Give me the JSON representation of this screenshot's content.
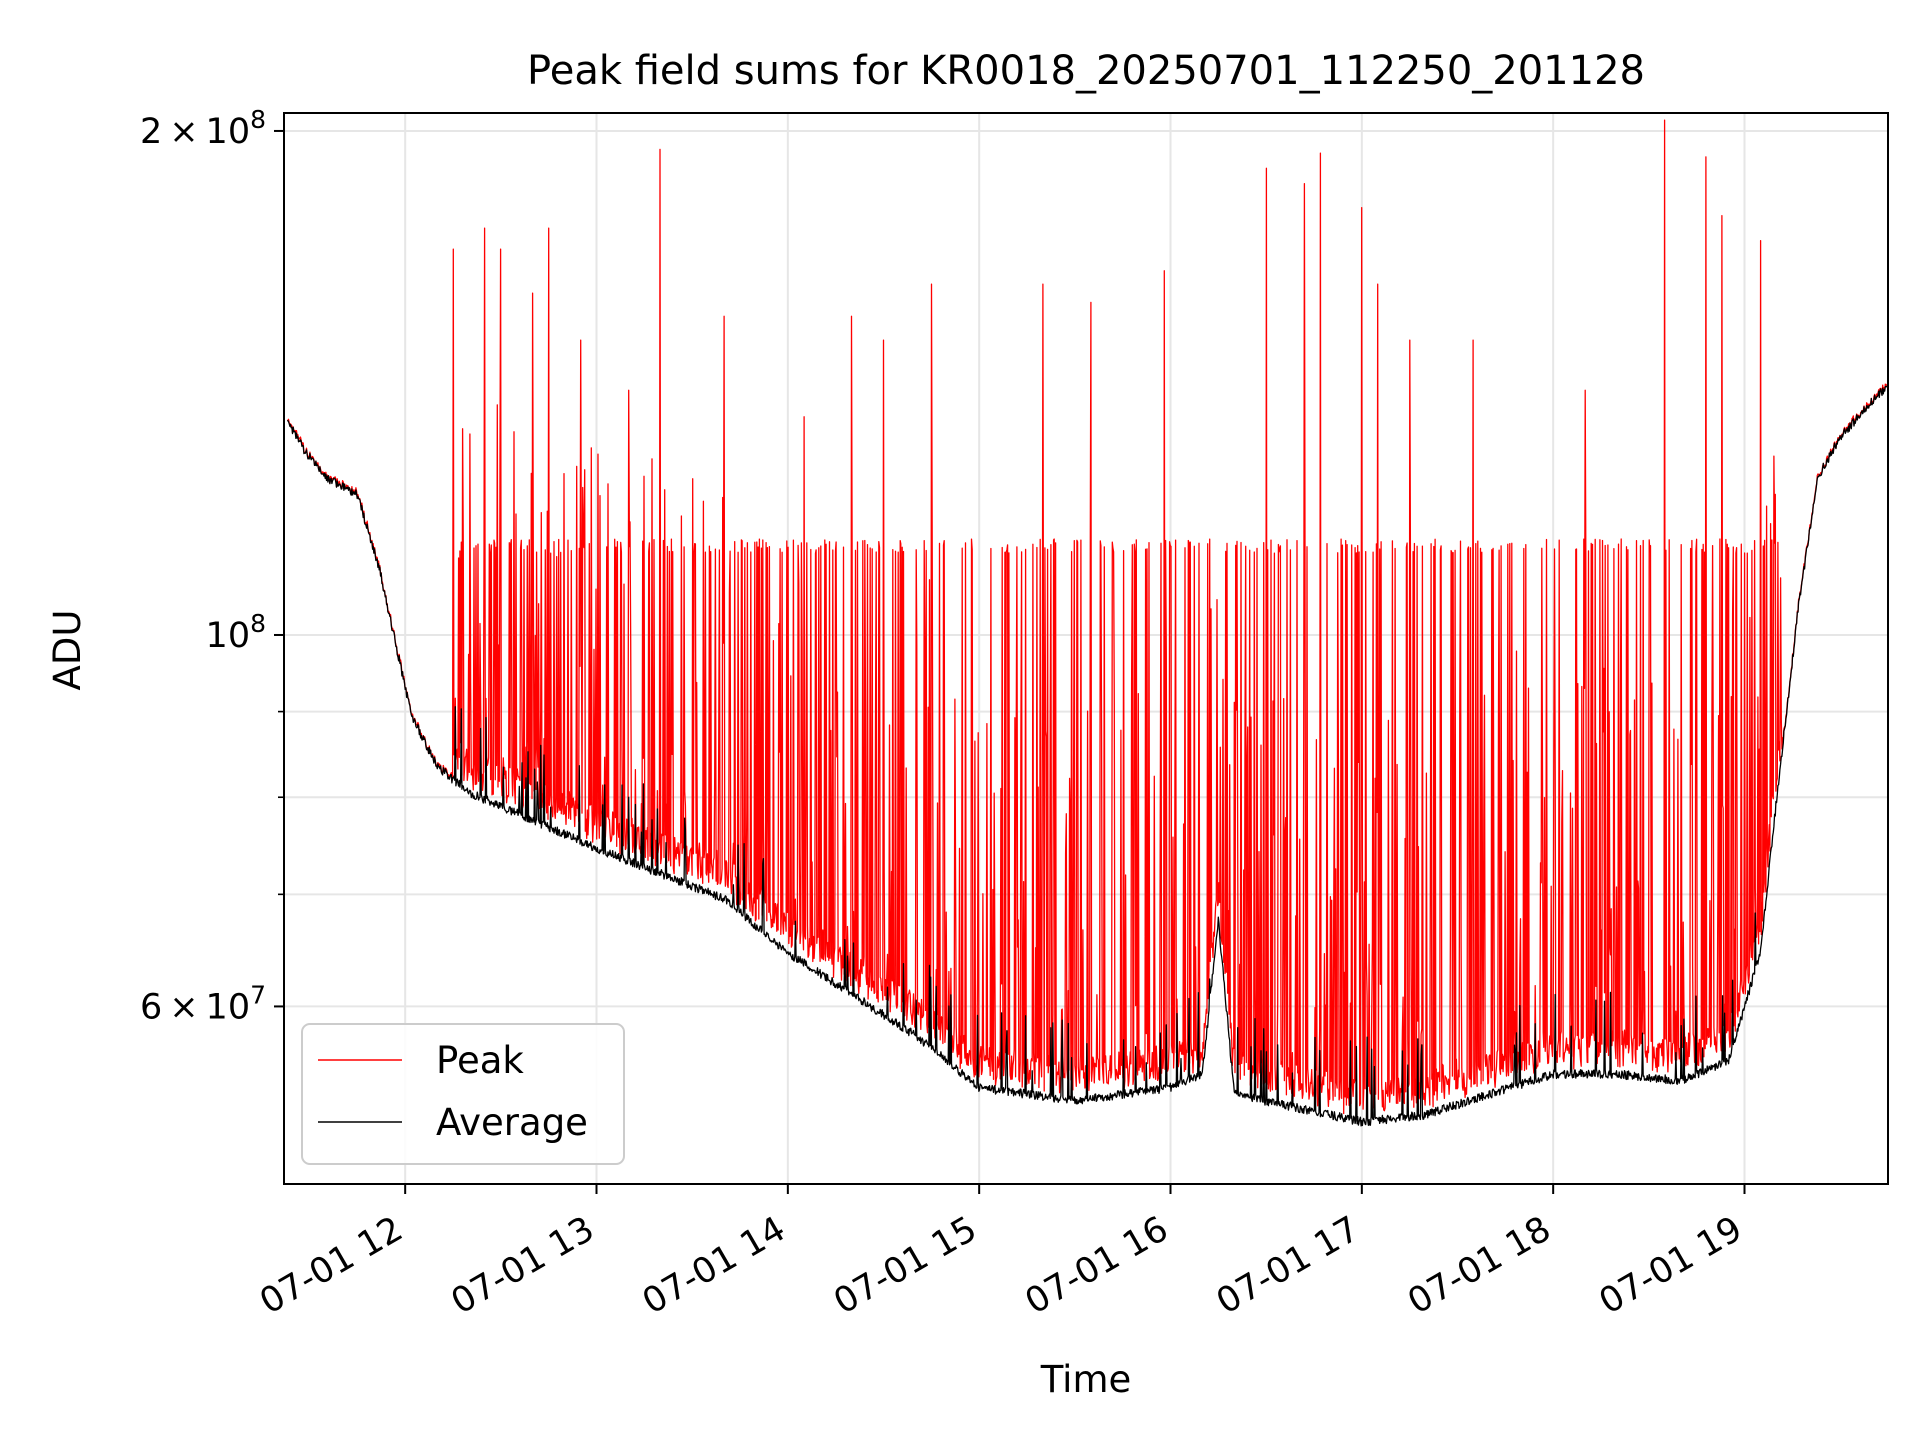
{
  "chart_data": {
    "type": "line",
    "title": "Peak field sums for KR0018_20250701_112250_201128",
    "xlabel": "Time",
    "ylabel": "ADU",
    "y_scale": "log",
    "grid": true,
    "legend_position": "lower-left",
    "x_range": [
      "2025-07-01 11:22",
      "2025-07-01 19:45"
    ],
    "ylim": [
      47000000,
      205000000
    ],
    "x_ticks": [
      "07-01 12",
      "07-01 13",
      "07-01 14",
      "07-01 15",
      "07-01 16",
      "07-01 17",
      "07-01 18",
      "07-01 19"
    ],
    "y_major_ticks": [
      {
        "value": 200000000,
        "mantissa": "2",
        "base": "10",
        "exp": "8"
      },
      {
        "value": 100000000,
        "mantissa": "",
        "base": "10",
        "exp": "8"
      },
      {
        "value": 60000000,
        "mantissa": "6",
        "base": "10",
        "exp": "7"
      }
    ],
    "y_minor_ticks": [
      70000000,
      80000000,
      90000000
    ],
    "average_profile": {
      "x": [
        "2025-07-01 11:23",
        "2025-07-01 11:28",
        "2025-07-01 11:35",
        "2025-07-01 11:45",
        "2025-07-01 11:52",
        "2025-07-01 12:02",
        "2025-07-01 12:10",
        "2025-07-01 12:20",
        "2025-07-01 12:40",
        "2025-07-01 13:00",
        "2025-07-01 13:40",
        "2025-07-01 14:00",
        "2025-07-01 14:40",
        "2025-07-01 15:00",
        "2025-07-01 15:30",
        "2025-07-01 16:00",
        "2025-07-01 16:10",
        "2025-07-01 16:15",
        "2025-07-01 16:20",
        "2025-07-01 16:40",
        "2025-07-01 17:00",
        "2025-07-01 17:20",
        "2025-07-01 17:40",
        "2025-07-01 18:00",
        "2025-07-01 18:20",
        "2025-07-01 18:40",
        "2025-07-01 18:55",
        "2025-07-01 19:05",
        "2025-07-01 19:10",
        "2025-07-01 19:17",
        "2025-07-01 19:23",
        "2025-07-01 19:30",
        "2025-07-01 19:45"
      ],
      "y": [
        135000000,
        130000000,
        125000000,
        122000000,
        110000000,
        90000000,
        84000000,
        81000000,
        78000000,
        75000000,
        70000000,
        65000000,
        58000000,
        54000000,
        53000000,
        54000000,
        55000000,
        68000000,
        53500000,
        52500000,
        51500000,
        52000000,
        53500000,
        55000000,
        55000000,
        54500000,
        56000000,
        65000000,
        80000000,
        105000000,
        125000000,
        132000000,
        142000000
      ]
    },
    "series": [
      {
        "name": "Peak",
        "color": "#ff0000",
        "note_values": "Average profile plus frequent spikes, many plateauing near 113000000, with tallest spikes reaching about 197000000"
      },
      {
        "name": "Average",
        "color": "#000000"
      }
    ],
    "peak_spikes": {
      "x": [
        "2025-07-01 12:15",
        "2025-07-01 12:25",
        "2025-07-01 12:30",
        "2025-07-01 12:40",
        "2025-07-01 12:45",
        "2025-07-01 12:55",
        "2025-07-01 13:10",
        "2025-07-01 13:20",
        "2025-07-01 13:40",
        "2025-07-01 14:05",
        "2025-07-01 14:20",
        "2025-07-01 14:30",
        "2025-07-01 14:45",
        "2025-07-01 15:20",
        "2025-07-01 15:35",
        "2025-07-01 15:58",
        "2025-07-01 16:30",
        "2025-07-01 16:42",
        "2025-07-01 16:47",
        "2025-07-01 17:00",
        "2025-07-01 17:05",
        "2025-07-01 17:15",
        "2025-07-01 17:35",
        "2025-07-01 18:10",
        "2025-07-01 18:35",
        "2025-07-01 18:48",
        "2025-07-01 18:53",
        "2025-07-01 19:05"
      ],
      "y": [
        170000000,
        175000000,
        170000000,
        160000000,
        175000000,
        150000000,
        140000000,
        195000000,
        155000000,
        135000000,
        155000000,
        150000000,
        162000000,
        162000000,
        158000000,
        165000000,
        190000000,
        186000000,
        194000000,
        180000000,
        162000000,
        150000000,
        150000000,
        140000000,
        203000000,
        193000000,
        178000000,
        172000000
      ]
    }
  },
  "legend": {
    "peak_label": "Peak",
    "average_label": "Average"
  }
}
